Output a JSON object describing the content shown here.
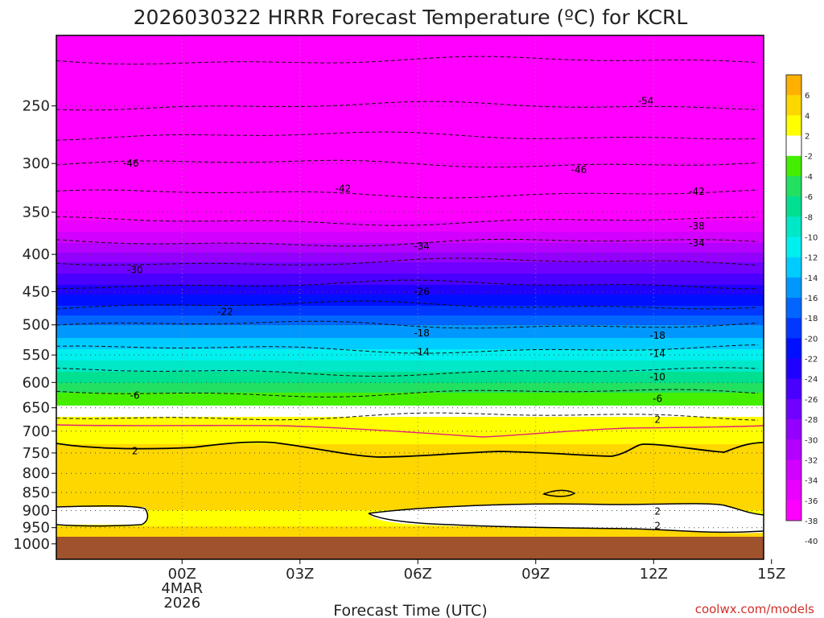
{
  "title": "2026030322 HRRR Forecast Temperature (ºC) for KCRL",
  "credit": "coolwx.com/models",
  "chart_data": {
    "type": "heatmap",
    "title": "2026030322 HRRR Forecast Temperature (ºC) for KCRL",
    "xlabel": "Forecast Time (UTC)",
    "ylabel": "",
    "x_range_hours_from_00Z": [
      -3.2,
      14.8
    ],
    "y_range_hPa": [
      1050,
      200
    ],
    "y_scale": "log",
    "x_ticks": [
      {
        "h": 0,
        "label": "00Z",
        "sub1": "4MAR",
        "sub2": "2026"
      },
      {
        "h": 3,
        "label": "03Z"
      },
      {
        "h": 6,
        "label": "06Z"
      },
      {
        "h": 9,
        "label": "09Z"
      },
      {
        "h": 12,
        "label": "12Z"
      },
      {
        "h": 15,
        "label": "15Z"
      }
    ],
    "y_ticks": [
      250,
      300,
      350,
      400,
      450,
      500,
      550,
      600,
      650,
      700,
      750,
      800,
      850,
      900,
      950,
      1000
    ],
    "grid": true,
    "surface_pressure_hPa": 975,
    "temperature_profile": [
      {
        "p": 200,
        "t": -60
      },
      {
        "p": 250,
        "t": -54
      },
      {
        "p": 300,
        "t": -46
      },
      {
        "p": 330,
        "t": -42
      },
      {
        "p": 360,
        "t": -38
      },
      {
        "p": 385,
        "t": -34
      },
      {
        "p": 410,
        "t": -30
      },
      {
        "p": 440,
        "t": -26
      },
      {
        "p": 470,
        "t": -22
      },
      {
        "p": 500,
        "t": -18
      },
      {
        "p": 540,
        "t": -14
      },
      {
        "p": 580,
        "t": -10
      },
      {
        "p": 620,
        "t": -6
      },
      {
        "p": 668,
        "t": -2
      },
      {
        "p": 690,
        "t": 0
      },
      {
        "p": 730,
        "t": 2
      },
      {
        "p": 800,
        "t": 3
      },
      {
        "p": 830,
        "t": 4
      },
      {
        "p": 870,
        "t": 3
      },
      {
        "p": 900,
        "t": 2
      },
      {
        "p": 930,
        "t": 1
      },
      {
        "p": 955,
        "t": 2.5
      },
      {
        "p": 1050,
        "t": 3
      }
    ],
    "colorbar": {
      "levels": [
        6,
        4,
        2,
        -2,
        -4,
        -6,
        -8,
        -10,
        -12,
        -14,
        -16,
        -18,
        -20,
        -22,
        -24,
        -26,
        -28,
        -30,
        -32,
        -34,
        -36,
        -38,
        -40
      ],
      "colors": [
        "#ffb000",
        "#ffd700",
        "#ffff00",
        "#ffffff",
        "#44ee00",
        "#22e060",
        "#00e090",
        "#00e8c8",
        "#00f0f0",
        "#00ccff",
        "#0098ff",
        "#0066ff",
        "#0038ff",
        "#0010ff",
        "#2000ff",
        "#4a00ff",
        "#7000ff",
        "#9400ff",
        "#b400ff",
        "#d200ff",
        "#ea00ff",
        "#ff00ff"
      ]
    },
    "contour_labels": [
      {
        "h": 11.8,
        "p": 246,
        "text": "-54"
      },
      {
        "h": -1.3,
        "p": 300,
        "text": "-46"
      },
      {
        "h": 10.1,
        "p": 306,
        "text": "-46"
      },
      {
        "h": 4.1,
        "p": 325,
        "text": "-42"
      },
      {
        "h": 13.1,
        "p": 328,
        "text": "-42"
      },
      {
        "h": 13.1,
        "p": 366,
        "text": "-38"
      },
      {
        "h": 6.1,
        "p": 390,
        "text": "-34"
      },
      {
        "h": 13.1,
        "p": 386,
        "text": "-34"
      },
      {
        "h": -1.2,
        "p": 420,
        "text": "-30"
      },
      {
        "h": 6.1,
        "p": 450,
        "text": "-26"
      },
      {
        "h": 1.1,
        "p": 480,
        "text": "-22"
      },
      {
        "h": 6.1,
        "p": 513,
        "text": "-18"
      },
      {
        "h": 12.1,
        "p": 517,
        "text": "-18"
      },
      {
        "h": 6.1,
        "p": 545,
        "text": "-14"
      },
      {
        "h": 12.1,
        "p": 548,
        "text": "-14"
      },
      {
        "h": 12.1,
        "p": 590,
        "text": "-10"
      },
      {
        "h": -1.2,
        "p": 625,
        "text": "-6"
      },
      {
        "h": 12.1,
        "p": 632,
        "text": "-6"
      },
      {
        "h": 12.1,
        "p": 675,
        "text": "2"
      },
      {
        "h": -1.2,
        "p": 745,
        "text": "2"
      },
      {
        "h": 12.1,
        "p": 902,
        "text": "2"
      },
      {
        "h": 12.1,
        "p": 945,
        "text": "2"
      }
    ]
  }
}
